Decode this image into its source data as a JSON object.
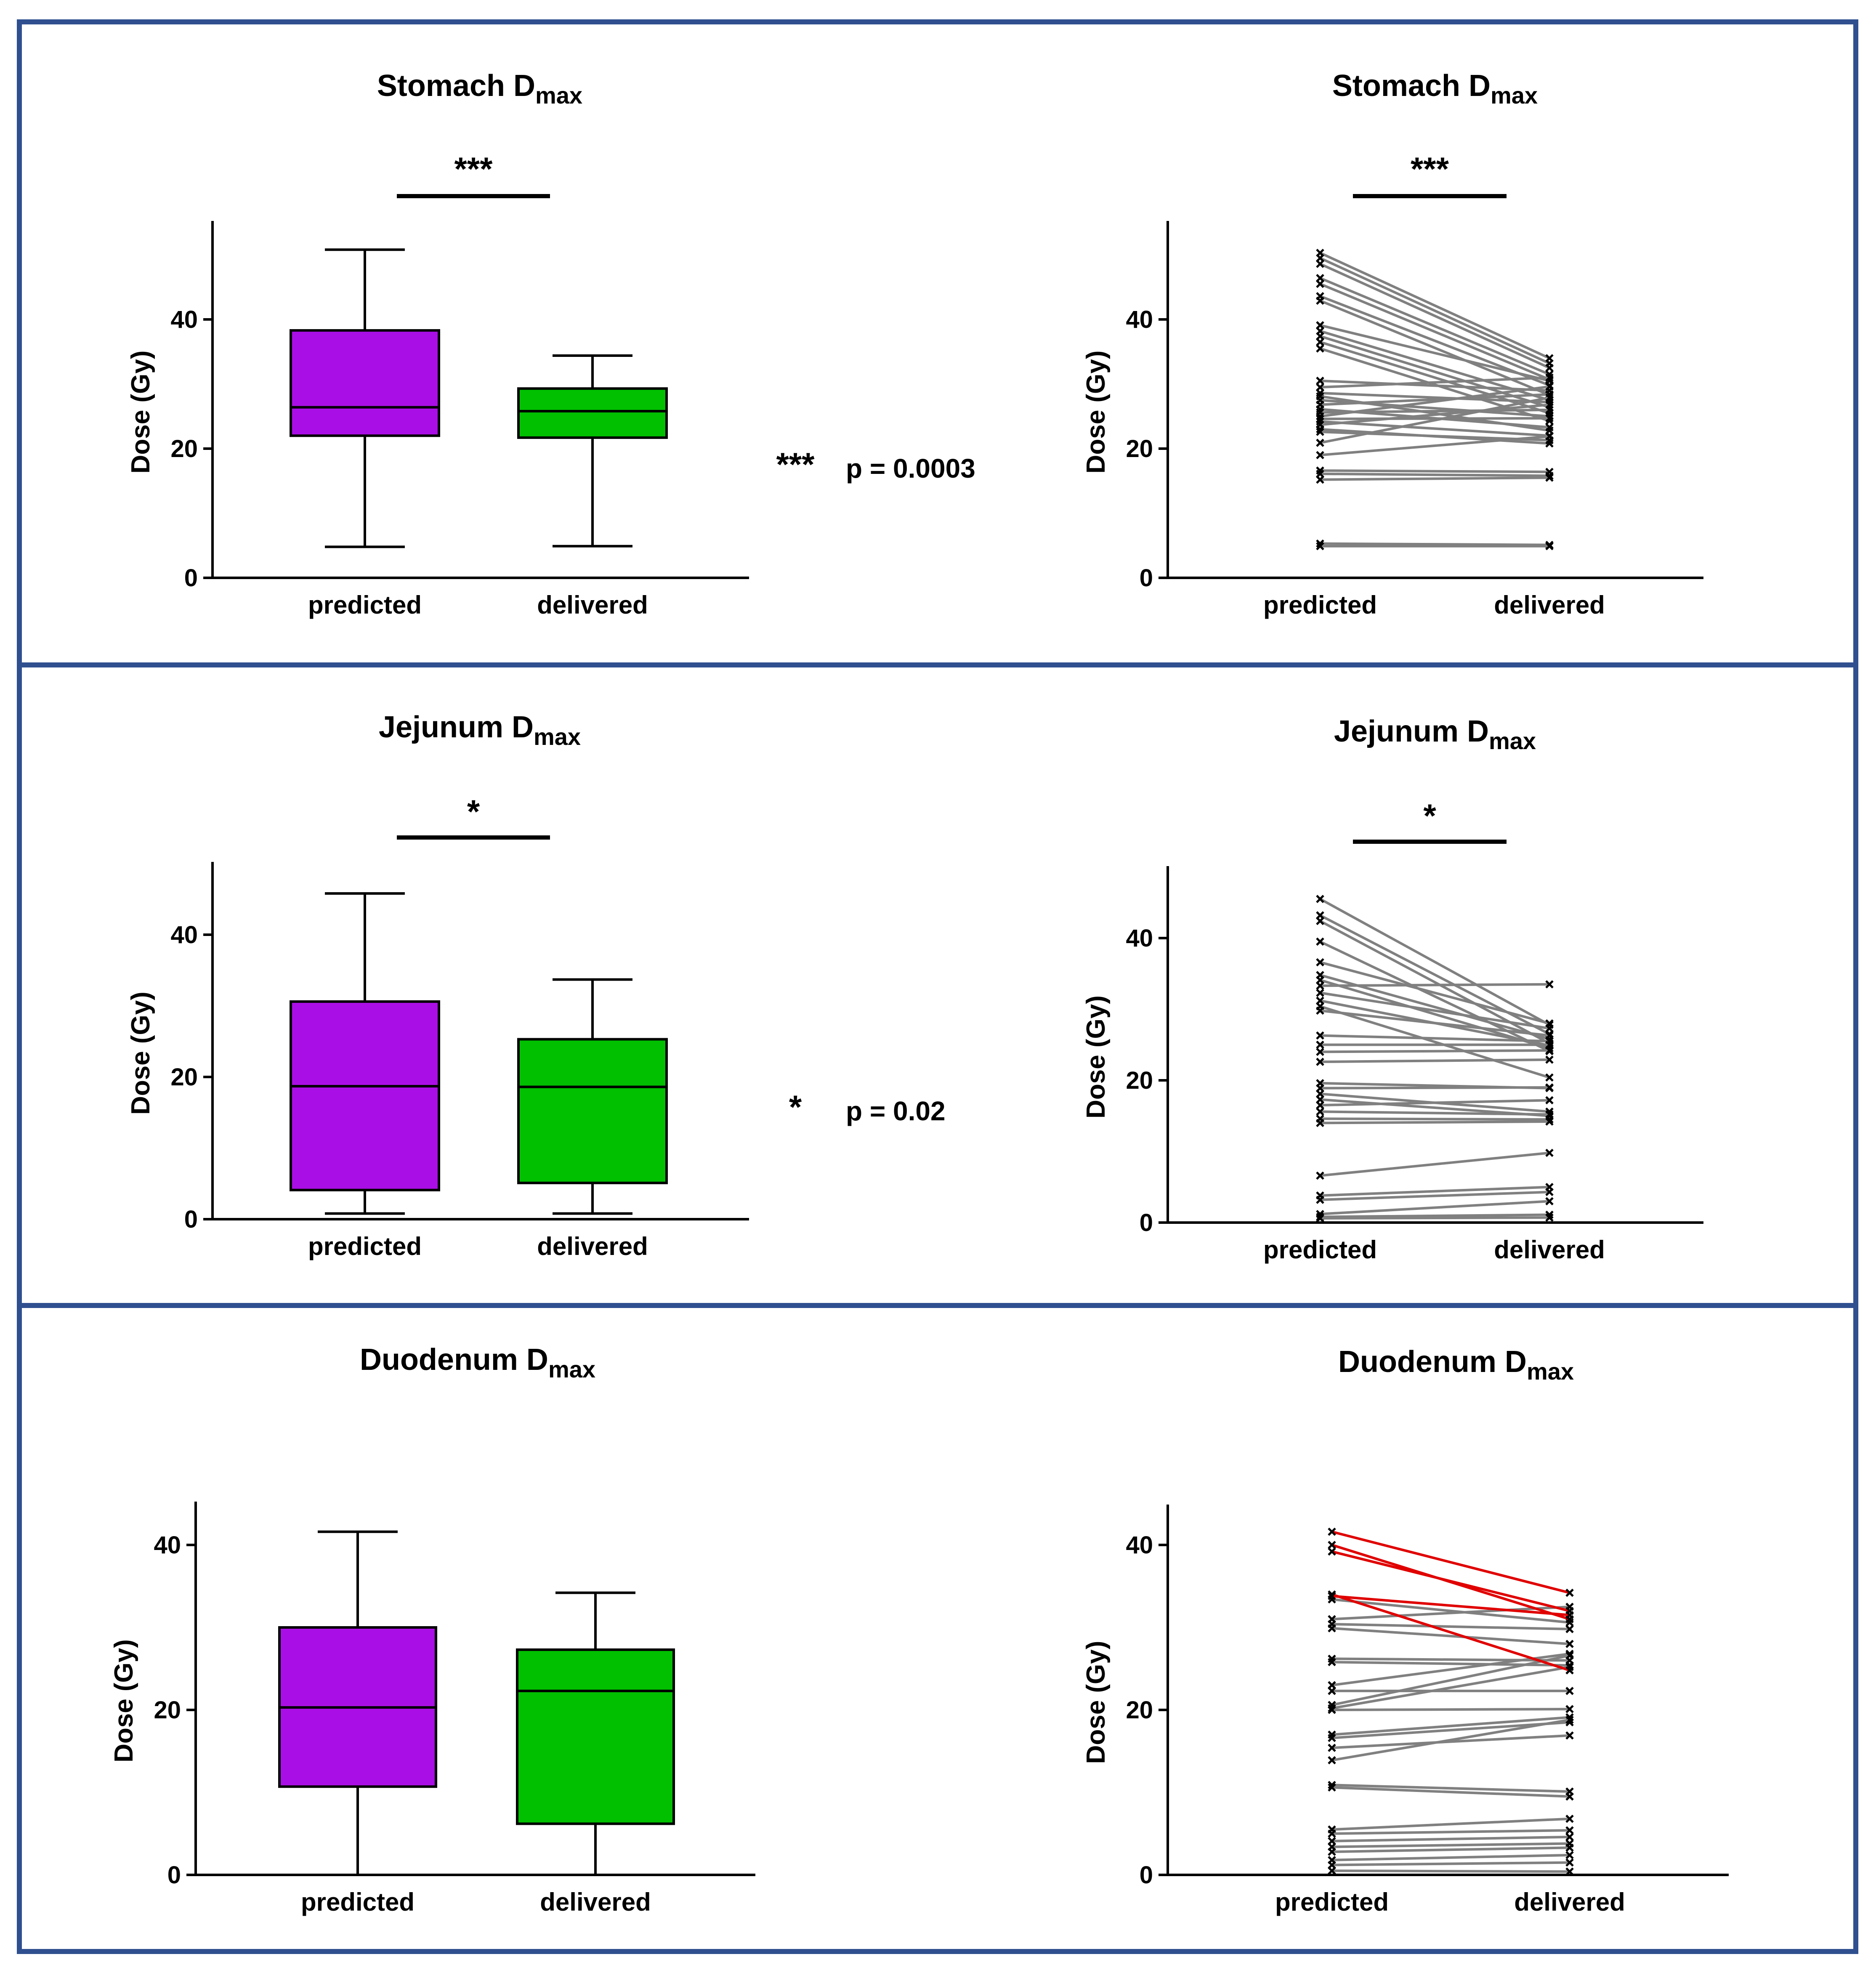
{
  "colors": {
    "predicted_box": "#aa0ee6",
    "delivered_box": "#00c000",
    "pair_line": "#808080",
    "pair_line_highlight": "#e00000",
    "frame": "#2f4f8f"
  },
  "chart_data": [
    {
      "id": "stomach-box",
      "type": "box",
      "title": "Stomach D",
      "title_sub": "max",
      "ylabel": "Dose (Gy)",
      "ylim": [
        0,
        55
      ],
      "yticks": [
        0,
        20,
        40
      ],
      "categories": [
        "predicted",
        "delivered"
      ],
      "boxes": [
        {
          "category": "predicted",
          "min": 4.8,
          "q1": 22.0,
          "median": 26.4,
          "q3": 38.3,
          "max": 50.8
        },
        {
          "category": "delivered",
          "min": 4.9,
          "q1": 21.7,
          "median": 25.8,
          "q3": 29.3,
          "max": 34.4
        }
      ],
      "significance": "***",
      "significance_label": "***",
      "p_value": "p = 0.0003"
    },
    {
      "id": "stomach-pairs",
      "type": "line",
      "title": "Stomach D",
      "title_sub": "max",
      "ylabel": "Dose (Gy)",
      "ylim": [
        0,
        55
      ],
      "yticks": [
        0,
        20,
        40
      ],
      "categories": [
        "predicted",
        "delivered"
      ],
      "significance": "***",
      "pairs": [
        [
          50.3,
          34.0
        ],
        [
          49.5,
          33.2
        ],
        [
          48.6,
          32.5
        ],
        [
          46.4,
          31.5
        ],
        [
          45.5,
          30.7
        ],
        [
          43.6,
          29.8
        ],
        [
          42.9,
          28.3
        ],
        [
          39.1,
          30.5
        ],
        [
          38.2,
          27.5
        ],
        [
          37.4,
          26.4
        ],
        [
          36.5,
          25.5
        ],
        [
          35.5,
          24.3
        ],
        [
          30.5,
          29.0
        ],
        [
          29.5,
          31.0
        ],
        [
          28.6,
          27.2
        ],
        [
          28.1,
          22.8
        ],
        [
          27.5,
          25.0
        ],
        [
          26.8,
          28.4
        ],
        [
          26.1,
          23.3
        ],
        [
          25.6,
          26.0
        ],
        [
          25.0,
          29.6
        ],
        [
          24.6,
          24.7
        ],
        [
          24.2,
          22.0
        ],
        [
          23.7,
          26.8
        ],
        [
          23.0,
          20.8
        ],
        [
          22.6,
          21.3
        ],
        [
          20.9,
          27.9
        ],
        [
          19.0,
          21.9
        ],
        [
          16.6,
          16.4
        ],
        [
          16.1,
          15.8
        ],
        [
          15.2,
          15.5
        ],
        [
          5.3,
          5.1
        ],
        [
          4.9,
          4.9
        ]
      ]
    },
    {
      "id": "jejunum-box",
      "type": "box",
      "title": "Jejunum D",
      "title_sub": "max",
      "ylabel": "Dose (Gy)",
      "ylim": [
        0,
        50
      ],
      "yticks": [
        0,
        20,
        40
      ],
      "categories": [
        "predicted",
        "delivered"
      ],
      "boxes": [
        {
          "category": "predicted",
          "min": 0.8,
          "q1": 4.1,
          "median": 18.7,
          "q3": 30.6,
          "max": 45.8
        },
        {
          "category": "delivered",
          "min": 0.8,
          "q1": 5.1,
          "median": 18.6,
          "q3": 25.3,
          "max": 33.7
        }
      ],
      "significance": "*",
      "significance_label": "*",
      "p_value": "p = 0.02"
    },
    {
      "id": "jejunum-pairs",
      "type": "line",
      "title": "Jejunum D",
      "title_sub": "max",
      "ylabel": "Dose (Gy)",
      "ylim": [
        0,
        50
      ],
      "yticks": [
        0,
        20,
        40
      ],
      "categories": [
        "predicted",
        "delivered"
      ],
      "significance": "*",
      "pairs": [
        [
          45.5,
          27.8
        ],
        [
          43.2,
          26.5
        ],
        [
          42.4,
          25.2
        ],
        [
          39.5,
          24.1
        ],
        [
          36.6,
          28.0
        ],
        [
          34.8,
          25.8
        ],
        [
          34.1,
          24.5
        ],
        [
          33.3,
          33.5
        ],
        [
          32.3,
          27.3
        ],
        [
          31.2,
          24.9
        ],
        [
          30.4,
          20.4
        ],
        [
          29.8,
          26.3
        ],
        [
          26.3,
          25.5
        ],
        [
          25.0,
          25.0
        ],
        [
          24.0,
          24.2
        ],
        [
          22.6,
          22.9
        ],
        [
          19.6,
          18.9
        ],
        [
          18.9,
          19.0
        ],
        [
          18.1,
          15.6
        ],
        [
          17.3,
          15.0
        ],
        [
          16.5,
          17.2
        ],
        [
          15.6,
          15.2
        ],
        [
          14.6,
          14.5
        ],
        [
          14.0,
          14.2
        ],
        [
          6.6,
          9.8
        ],
        [
          3.8,
          5.0
        ],
        [
          3.2,
          4.3
        ],
        [
          1.2,
          3.0
        ],
        [
          0.8,
          1.1
        ],
        [
          0.6,
          0.7
        ]
      ]
    },
    {
      "id": "duodenum-box",
      "type": "box",
      "title": "Duodenum D",
      "title_sub": "max",
      "ylabel": "Dose (Gy)",
      "ylim": [
        0,
        45
      ],
      "yticks": [
        0,
        20,
        40
      ],
      "categories": [
        "predicted",
        "delivered"
      ],
      "boxes": [
        {
          "category": "predicted",
          "min": 0.0,
          "q1": 10.7,
          "median": 20.3,
          "q3": 30.0,
          "max": 41.6
        },
        {
          "category": "delivered",
          "min": 0.0,
          "q1": 6.2,
          "median": 22.3,
          "q3": 27.3,
          "max": 34.2
        }
      ]
    },
    {
      "id": "duodenum-pairs",
      "type": "line",
      "title": "Duodenum D",
      "title_sub": "max",
      "ylabel": "Dose (Gy)",
      "ylim": [
        0,
        45
      ],
      "yticks": [
        0,
        20,
        40
      ],
      "categories": [
        "predicted",
        "delivered"
      ],
      "highlighted_pairs": [
        [
          41.6,
          34.2
        ],
        [
          40.0,
          31.0
        ],
        [
          39.2,
          32.0
        ],
        [
          34.0,
          24.8
        ],
        [
          33.8,
          31.5
        ]
      ],
      "pairs": [
        [
          33.4,
          30.6
        ],
        [
          31.0,
          32.5
        ],
        [
          30.4,
          29.8
        ],
        [
          29.9,
          28.0
        ],
        [
          26.2,
          26.0
        ],
        [
          25.8,
          25.4
        ],
        [
          23.0,
          26.8
        ],
        [
          22.3,
          22.3
        ],
        [
          20.6,
          26.6
        ],
        [
          20.2,
          25.2
        ],
        [
          20.0,
          20.1
        ],
        [
          17.0,
          19.1
        ],
        [
          16.6,
          18.5
        ],
        [
          15.4,
          16.9
        ],
        [
          13.9,
          18.8
        ],
        [
          10.9,
          10.1
        ],
        [
          10.6,
          9.5
        ],
        [
          5.5,
          6.8
        ],
        [
          5.0,
          5.4
        ],
        [
          4.1,
          4.6
        ],
        [
          3.4,
          3.8
        ],
        [
          2.8,
          3.3
        ],
        [
          1.8,
          2.4
        ],
        [
          1.2,
          1.5
        ],
        [
          0.5,
          0.4
        ]
      ]
    }
  ]
}
